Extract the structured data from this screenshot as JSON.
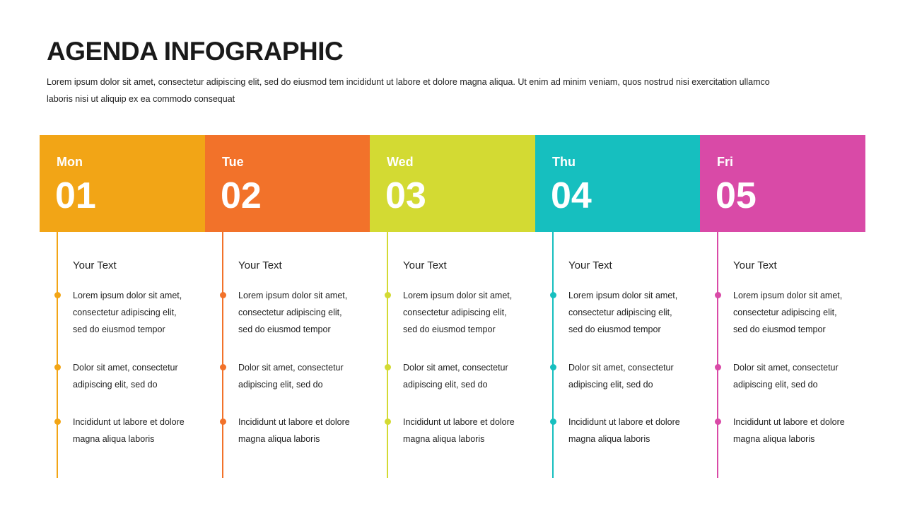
{
  "title": "AGENDA INFOGRAPHIC",
  "intro_lines": [
    "Lorem ipsum dolor sit amet, consectetur adipiscing elit, sed do eiusmod tem incididunt ut labore et dolore magna aliqua. Ut enim ad minim veniam, quos nostrud nisi exercitation ullamco",
    "laboris nisi ut aliquip ex ea commodo consequat"
  ],
  "days": [
    {
      "day": "Mon",
      "number": "01",
      "color": "#F2A516"
    },
    {
      "day": "Tue",
      "number": "02",
      "color": "#F2722A"
    },
    {
      "day": "Wed",
      "number": "03",
      "color": "#D3DA33"
    },
    {
      "day": "Thu",
      "number": "04",
      "color": "#16BFBF"
    },
    {
      "day": "Fri",
      "number": "05",
      "color": "#D94AA7"
    }
  ],
  "column_content": {
    "subtitle": "Your Text",
    "items": [
      [
        "Lorem ipsum dolor sit amet,",
        "consectetur adipiscing elit,",
        "sed do eiusmod tempor"
      ],
      [
        "Dolor sit amet, consectetur",
        "adipiscing elit, sed do"
      ],
      [
        "Incididunt ut labore et dolore",
        "magna aliqua laboris"
      ]
    ]
  }
}
